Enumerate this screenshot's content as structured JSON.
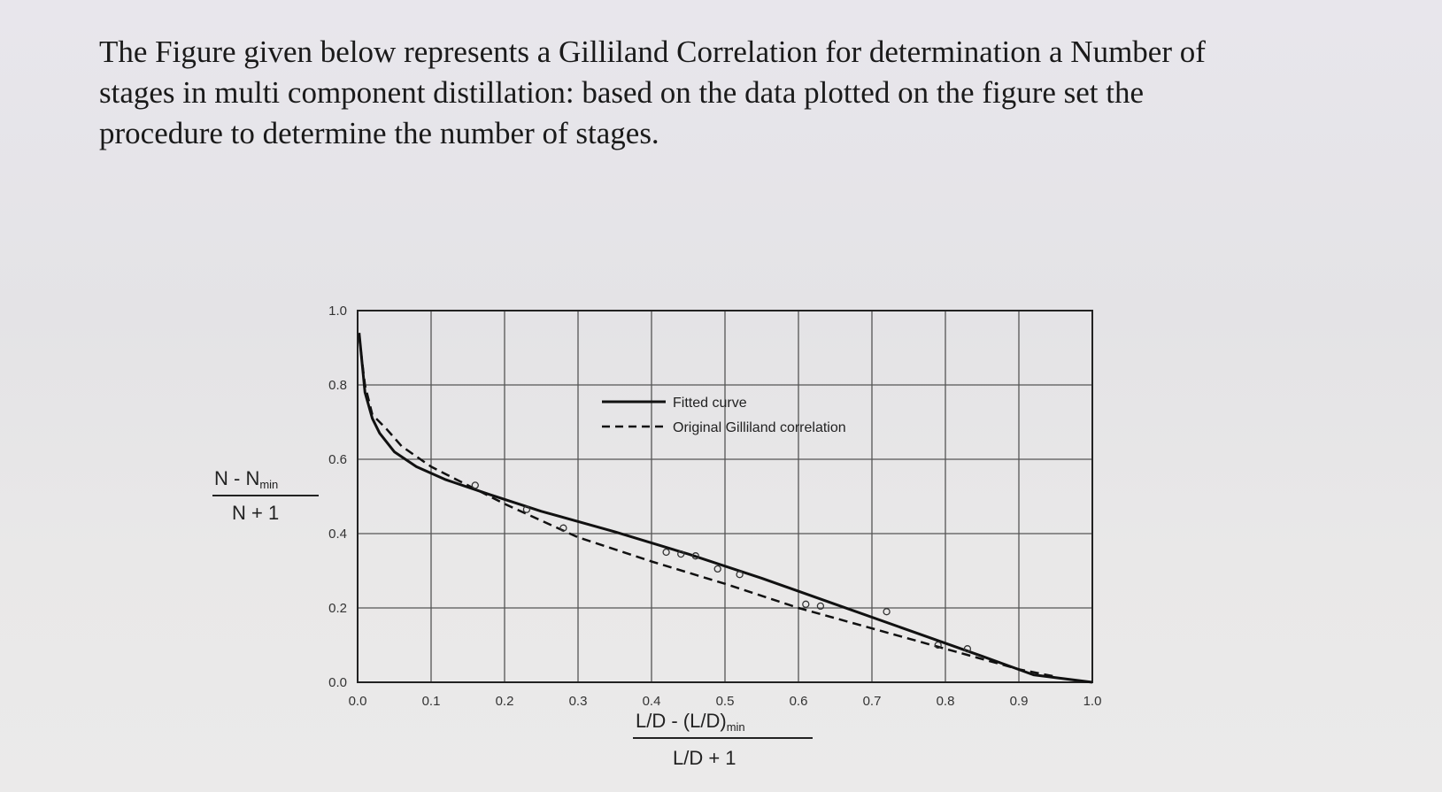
{
  "question": {
    "line1": "The Figure given below represents a Gilliland Correlation for determination a Number of",
    "line2": "stages in multi component distillation: based on the data plotted on the figure set the",
    "line3": "procedure to determine the number of stages."
  },
  "chart_data": {
    "type": "line",
    "title": "",
    "xlabel": {
      "numerator": "L/D - (L/D)",
      "numerator_sub": "min",
      "denominator": "L/D + 1"
    },
    "ylabel": {
      "numerator": "N - N",
      "numerator_sub": "min",
      "denominator": "N + 1"
    },
    "xlim": [
      0.0,
      1.0
    ],
    "ylim": [
      0.0,
      1.0
    ],
    "x_ticks": [
      "0.0",
      "0.1",
      "0.2",
      "0.3",
      "0.4",
      "0.5",
      "0.6",
      "0.7",
      "0.8",
      "0.9",
      "1.0"
    ],
    "y_ticks": [
      "0.0",
      "0.2",
      "0.4",
      "0.6",
      "0.8",
      "1.0"
    ],
    "grid": true,
    "legend_position": "top-center",
    "series": [
      {
        "name": "Fitted curve",
        "style": "solid",
        "x": [
          0.002,
          0.01,
          0.02,
          0.03,
          0.05,
          0.08,
          0.12,
          0.18,
          0.25,
          0.35,
          0.45,
          0.55,
          0.65,
          0.75,
          0.85,
          0.92,
          1.0
        ],
        "y": [
          0.94,
          0.78,
          0.71,
          0.67,
          0.62,
          0.58,
          0.545,
          0.505,
          0.46,
          0.405,
          0.345,
          0.28,
          0.21,
          0.14,
          0.07,
          0.02,
          0.0
        ]
      },
      {
        "name": "Original Gilliland correlation",
        "style": "dashed",
        "x": [
          0.002,
          0.01,
          0.02,
          0.04,
          0.06,
          0.1,
          0.15,
          0.2,
          0.3,
          0.4,
          0.5,
          0.6,
          0.7,
          0.8,
          0.9,
          0.95
        ],
        "y": [
          0.93,
          0.8,
          0.72,
          0.68,
          0.635,
          0.58,
          0.53,
          0.48,
          0.39,
          0.325,
          0.265,
          0.2,
          0.145,
          0.09,
          0.035,
          0.015
        ]
      }
    ],
    "data_points": {
      "x": [
        0.16,
        0.23,
        0.28,
        0.42,
        0.44,
        0.46,
        0.49,
        0.52,
        0.61,
        0.63,
        0.72,
        0.79,
        0.83
      ],
      "y": [
        0.53,
        0.465,
        0.415,
        0.35,
        0.345,
        0.34,
        0.305,
        0.29,
        0.21,
        0.205,
        0.19,
        0.1,
        0.09
      ]
    }
  }
}
